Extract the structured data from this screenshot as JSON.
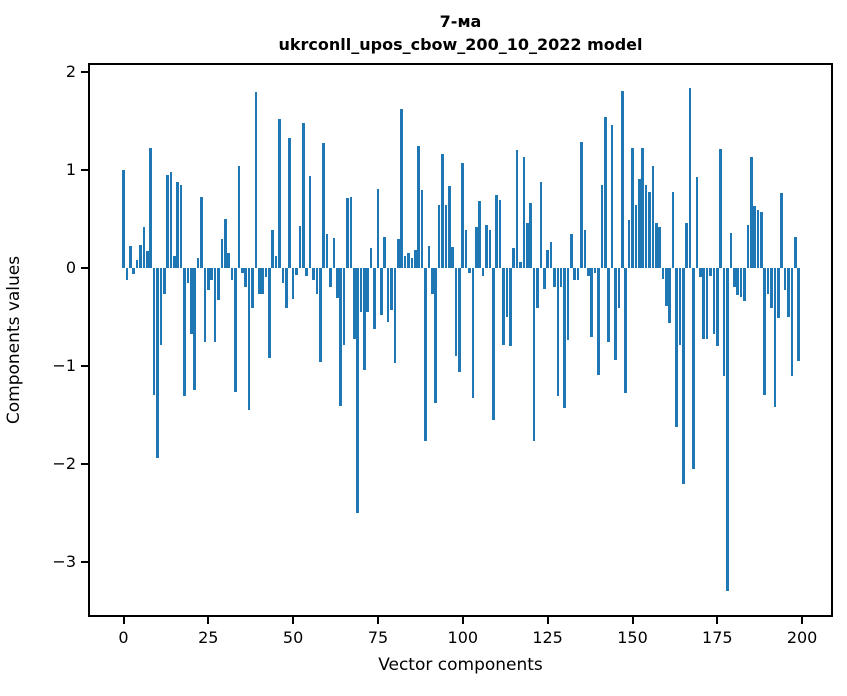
{
  "chart_data": {
    "type": "bar",
    "title_line1": "7-ма",
    "title_line2": "ukrconll_upos_cbow_200_10_2022 model",
    "xlabel": "Vector components",
    "ylabel": "Components values",
    "bar_color": "#1f77b4",
    "n_components": 200,
    "xlim": [
      -10.5,
      209.3
    ],
    "ylim": [
      -3.56,
      2.1
    ],
    "grid": false,
    "legend": false,
    "x_ticks": [
      0,
      25,
      50,
      75,
      100,
      125,
      150,
      175,
      200
    ],
    "x_tick_labels": [
      "0",
      "25",
      "50",
      "75",
      "100",
      "125",
      "150",
      "175",
      "200"
    ],
    "y_ticks": [
      2,
      1,
      0,
      -1,
      -2,
      -3
    ],
    "y_tick_labels": [
      "2",
      "1",
      "0",
      "−1",
      "−2",
      "−3"
    ],
    "values": [
      1.0,
      -0.12,
      0.22,
      -0.06,
      0.08,
      0.24,
      0.42,
      0.17,
      1.22,
      -1.3,
      -1.94,
      -0.79,
      -0.26,
      0.95,
      0.98,
      0.12,
      0.88,
      0.85,
      -1.31,
      -0.15,
      -0.67,
      -1.24,
      0.1,
      0.72,
      -0.75,
      -0.22,
      -0.12,
      -0.75,
      -0.33,
      0.3,
      0.5,
      0.15,
      -0.12,
      -1.26,
      1.04,
      -0.05,
      -0.19,
      -1.45,
      -0.41,
      1.8,
      -0.26,
      -0.26,
      -0.09,
      -0.92,
      0.39,
      0.12,
      1.52,
      -0.15,
      -0.41,
      1.33,
      -0.32,
      -0.07,
      0.43,
      1.48,
      -0.08,
      0.94,
      -0.12,
      -0.26,
      -0.96,
      1.28,
      0.35,
      -0.19,
      0.31,
      -0.31,
      -1.41,
      -0.79,
      0.71,
      0.73,
      -0.72,
      -2.5,
      -0.45,
      -1.04,
      -0.45,
      0.2,
      -0.62,
      0.81,
      -0.48,
      0.32,
      -0.55,
      -0.43,
      -0.97,
      0.3,
      1.62,
      0.12,
      0.15,
      0.1,
      0.18,
      1.25,
      0.8,
      -1.76,
      0.22,
      -0.26,
      -1.38,
      0.64,
      1.16,
      0.64,
      0.84,
      0.21,
      -0.9,
      -1.06,
      1.07,
      0.39,
      -0.05,
      -1.33,
      0.42,
      0.68,
      -0.08,
      0.44,
      0.39,
      -1.55,
      0.75,
      0.69,
      -0.79,
      -0.5,
      -0.8,
      0.2,
      1.2,
      0.06,
      1.13,
      0.46,
      0.66,
      -1.76,
      -0.41,
      0.88,
      -0.21,
      0.18,
      0.27,
      -0.19,
      -1.31,
      -0.19,
      -1.43,
      -0.73,
      0.35,
      -0.12,
      -0.12,
      1.29,
      0.39,
      -0.08,
      -0.7,
      -0.05,
      -1.09,
      0.85,
      1.54,
      -0.75,
      1.46,
      -0.94,
      -0.41,
      1.81,
      -1.28,
      0.49,
      1.22,
      0.64,
      0.91,
      1.23,
      0.85,
      0.78,
      1.04,
      0.46,
      0.42,
      -0.11,
      -0.39,
      -0.56,
      0.78,
      -1.62,
      -0.79,
      -2.2,
      0.46,
      1.84,
      -2.05,
      0.93,
      -0.09,
      -0.72,
      -0.72,
      -0.08,
      -0.67,
      -0.8,
      1.21,
      -1.1,
      -3.3,
      0.36,
      -0.19,
      -0.27,
      -0.3,
      -0.34,
      0.44,
      1.13,
      0.63,
      0.59,
      0.57,
      -1.3,
      -0.26,
      -0.41,
      -1.42,
      -0.51,
      0.77,
      -0.22,
      -0.5,
      -1.1,
      0.32,
      -0.95
    ]
  }
}
